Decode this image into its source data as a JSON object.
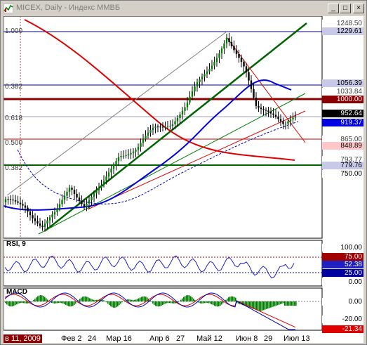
{
  "window": {
    "title": "MICEX, Daily - Индекс ММВБ",
    "buttons": {
      "minimize": "_",
      "maximize": "□",
      "close": "×"
    }
  },
  "fib_left_labels": [
    "1.000",
    "0.382",
    "0.618",
    "0.500",
    "0.382"
  ],
  "price_labels": {
    "top1": "1248.50",
    "top2": "1229.61",
    "l1056": "1056.39",
    "l1033": "1033.84",
    "l1000": "1000.00",
    "last": "952.64",
    "l919": "919.37",
    "l865": "865.00",
    "l848": "848.89",
    "l793": "793.77",
    "l779": "779.76",
    "l750": "750.00"
  },
  "rsi": {
    "title": "RSI, 9",
    "scale": [
      "100.00",
      "75.00",
      "52.38",
      "25.00",
      "0.00"
    ]
  },
  "macd": {
    "title": "MACD",
    "scale": [
      "0.00",
      "-20.00",
      "-21.34"
    ]
  },
  "x_axis": {
    "labels": [
      "в 11, 2009",
      "Фев 2",
      "24",
      "Мар 16",
      "Апр 6",
      "27",
      "Май 12",
      "Июн 8",
      "29",
      "Июл 13"
    ]
  },
  "colors": {
    "up_candle": "#008000",
    "sma_red": "#e00000",
    "sma_blue": "#0000e0",
    "trend_green": "#006400",
    "label_blue": "#4040a0",
    "label_red": "#e00000"
  }
}
